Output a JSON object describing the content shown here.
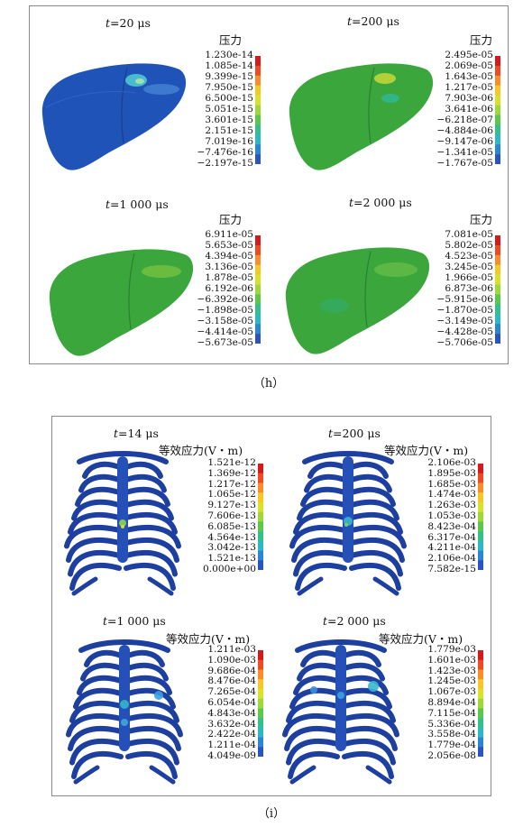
{
  "figure_h": {
    "caption": "（h）",
    "panels": [
      {
        "t_var": "t",
        "t_value": "=20 μs",
        "quantity": "压力",
        "ticks": [
          "1.230e-14",
          "1.085e-14",
          "9.399e-15",
          "7.950e-15",
          "6.500e-15",
          "5.051e-15",
          "3.601e-15",
          "2.151e-15",
          "7.019e-16",
          "−7.476e-16",
          "−2.197e-15"
        ]
      },
      {
        "t_var": "t",
        "t_value": "=200 μs",
        "quantity": "压力",
        "ticks": [
          "2.495e-05",
          "2.069e-05",
          "1.643e-05",
          "1.217e-05",
          "7.903e-06",
          "3.641e-06",
          "−6.218e-07",
          "−4.884e-06",
          "−9.147e-06",
          "−1.341e-05",
          "−1.767e-05"
        ]
      },
      {
        "t_var": "t",
        "t_value": "=1 000 μs",
        "quantity": "压力",
        "ticks": [
          "6.911e-05",
          "5.653e-05",
          "4.394e-05",
          "3.136e-05",
          "1.878e-05",
          "6.192e-06",
          "−6.392e-06",
          "−1.898e-05",
          "−3.158e-05",
          "−4.414e-05",
          "−5.673e-05"
        ]
      },
      {
        "t_var": "t",
        "t_value": "=2 000 μs",
        "quantity": "压力",
        "ticks": [
          "7.081e-05",
          "5.802e-05",
          "4.523e-05",
          "3.245e-05",
          "1.966e-05",
          "6.873e-06",
          "−5.915e-06",
          "−1.870e-05",
          "−3.149e-05",
          "−4.428e-05",
          "−5.706e-05"
        ]
      }
    ]
  },
  "figure_i": {
    "caption": "（i）",
    "panels": [
      {
        "t_var": "t",
        "t_value": "=14 μs",
        "quantity": "等效应力(V・m)",
        "ticks": [
          "1.521e-12",
          "1.369e-12",
          "1.217e-12",
          "1.065e-12",
          "9.127e-13",
          "7.606e-13",
          "6.085e-13",
          "4.564e-13",
          "3.042e-13",
          "1.521e-13",
          "0.000e+00"
        ]
      },
      {
        "t_var": "t",
        "t_value": "=200 μs",
        "quantity": "等效应力(V・m)",
        "ticks": [
          "2.106e-03",
          "1.895e-03",
          "1.685e-03",
          "1.474e-03",
          "1.263e-03",
          "1.053e-03",
          "8.423e-04",
          "6.317e-04",
          "4.211e-04",
          "2.106e-04",
          "7.582e-15"
        ]
      },
      {
        "t_var": "t",
        "t_value": "=1 000 μs",
        "quantity": "等效应力(V・m)",
        "ticks": [
          "1.211e-03",
          "1.090e-03",
          "9.686e-04",
          "8.476e-04",
          "7.265e-04",
          "6.054e-04",
          "4.843e-04",
          "3.632e-04",
          "2.422e-04",
          "1.211e-04",
          "4.049e-09"
        ]
      },
      {
        "t_var": "t",
        "t_value": "=2 000 μs",
        "quantity": "等效应力(V・m)",
        "ticks": [
          "1.779e-03",
          "1.601e-03",
          "1.423e-03",
          "1.245e-03",
          "1.067e-03",
          "8.894e-04",
          "7.115e-04",
          "5.336e-04",
          "3.558e-04",
          "1.779e-04",
          "2.056e-08"
        ]
      }
    ]
  },
  "colormap": [
    "#d7191c",
    "#f04a23",
    "#fb8c2a",
    "#f5c826",
    "#d8e22b",
    "#9fd83a",
    "#5cc84a",
    "#34c08a",
    "#2cb8c4",
    "#2a86d8",
    "#2a55c0"
  ],
  "liver_colors": {
    "blue": "#1f53b7",
    "green": "#3aa63c"
  },
  "rib_color": "#1d3fa0"
}
